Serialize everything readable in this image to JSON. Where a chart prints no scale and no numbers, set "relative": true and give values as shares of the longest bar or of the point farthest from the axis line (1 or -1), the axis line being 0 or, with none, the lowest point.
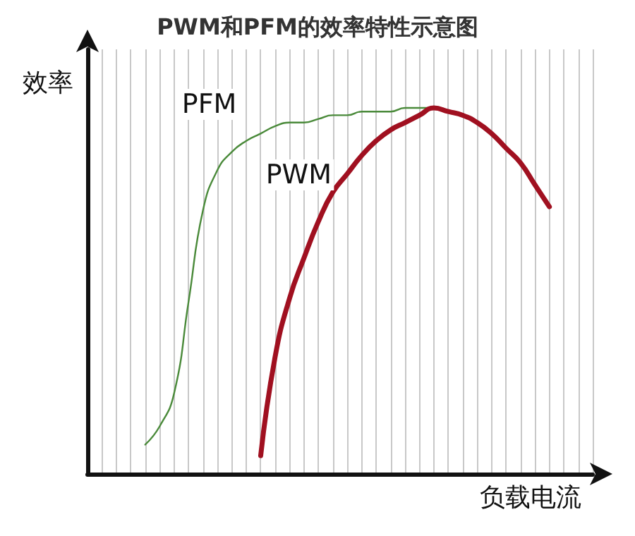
{
  "chart_data": {
    "type": "line",
    "title": "PWM和PFM的效率特性示意图",
    "xlabel": "负载电流",
    "ylabel": "效率",
    "relative": true,
    "grid": "x",
    "legend": false,
    "line_style": "solid",
    "categories": [
      null,
      null,
      null,
      null,
      null,
      null,
      null,
      null,
      null,
      null,
      null,
      null,
      null,
      null,
      null,
      null,
      null,
      null,
      null,
      null,
      null,
      null,
      null,
      null,
      null,
      null,
      null,
      null,
      null,
      null,
      null,
      null,
      null,
      null,
      null,
      null
    ],
    "series": [
      {
        "name": "PFM",
        "color": "#4a8a3a",
        "values": [
          null,
          null,
          null,
          null,
          0.08,
          0.13,
          0.22,
          0.47,
          0.72,
          0.83,
          0.88,
          0.91,
          0.93,
          0.95,
          0.96,
          0.96,
          0.97,
          0.98,
          0.98,
          0.99,
          0.99,
          0.99,
          1.0,
          1.0,
          1.0,
          0.99,
          null,
          null,
          null,
          null,
          null,
          null,
          null,
          null,
          null,
          null
        ]
      },
      {
        "name": "PWM",
        "color": "#a01020",
        "values": [
          null,
          null,
          null,
          null,
          null,
          null,
          null,
          null,
          null,
          null,
          null,
          null,
          0.05,
          0.32,
          0.48,
          0.59,
          0.69,
          0.77,
          0.82,
          0.87,
          0.91,
          0.94,
          0.96,
          0.98,
          1.0,
          0.99,
          0.98,
          0.96,
          0.93,
          0.89,
          0.85,
          0.79,
          0.73,
          null,
          null,
          null
        ]
      }
    ]
  }
}
